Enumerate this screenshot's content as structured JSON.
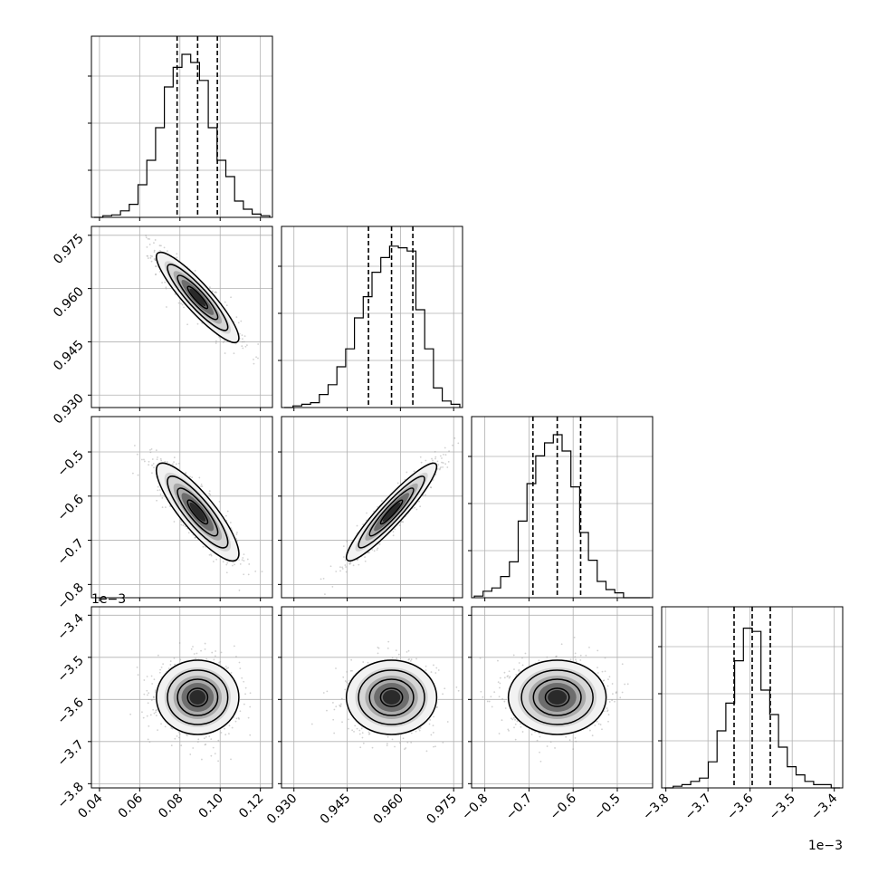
{
  "chart_data": {
    "type": "corner",
    "parameters": [
      {
        "lim": [
          0.036,
          0.126
        ],
        "ticks": [
          "0.04",
          "0.06",
          "0.08",
          "0.10",
          "0.12"
        ],
        "tick_values": [
          0.04,
          0.06,
          0.08,
          0.1,
          0.12
        ],
        "quantiles": [
          0.0786,
          0.0888,
          0.0986
        ],
        "mean": 0.0888,
        "sd": 0.01,
        "scale_label": ""
      },
      {
        "lim": [
          0.9265,
          0.9775
        ],
        "ticks": [
          "0.930",
          "0.945",
          "0.960",
          "0.975"
        ],
        "tick_values": [
          0.93,
          0.945,
          0.96,
          0.975
        ],
        "quantiles": [
          0.951,
          0.9575,
          0.9635
        ],
        "mean": 0.9575,
        "sd": 0.0062,
        "scale_label": ""
      },
      {
        "lim": [
          -0.83,
          -0.42
        ],
        "ticks": [
          "−0.8",
          "−0.7",
          "−0.6",
          "−0.5"
        ],
        "tick_values": [
          -0.8,
          -0.7,
          -0.6,
          -0.5
        ],
        "quantiles": [
          -0.691,
          -0.636,
          -0.583
        ],
        "mean": -0.636,
        "sd": 0.054,
        "scale_label": ""
      },
      {
        "lim": [
          -3.81,
          -3.38
        ],
        "ticks": [
          "−3.8",
          "−3.7",
          "−3.6",
          "−3.5",
          "−3.4"
        ],
        "tick_values": [
          -3.8,
          -3.7,
          -3.6,
          -3.5,
          -3.4
        ],
        "quantiles": [
          -3.638,
          -3.595,
          -3.552
        ],
        "mean": -3.595,
        "sd": 0.043,
        "scale_label": "1e−3"
      }
    ],
    "correlations": [
      [
        1.0,
        -0.9,
        -0.85,
        0.0
      ],
      [
        -0.9,
        1.0,
        0.93,
        0.0
      ],
      [
        -0.85,
        0.93,
        1.0,
        0.0
      ],
      [
        0.0,
        0.0,
        0.0,
        1.0
      ]
    ],
    "histogram_heights": [
      [
        0.0,
        0.01,
        0.015,
        0.04,
        0.08,
        0.2,
        0.35,
        0.55,
        0.8,
        0.92,
        1.0,
        0.95,
        0.84,
        0.55,
        0.35,
        0.25,
        0.1,
        0.05,
        0.02,
        0.01
      ],
      [
        0.0,
        0.01,
        0.02,
        0.03,
        0.08,
        0.14,
        0.25,
        0.36,
        0.55,
        0.68,
        0.83,
        0.92,
        0.99,
        0.98,
        0.96,
        0.6,
        0.36,
        0.12,
        0.04,
        0.02
      ],
      [
        0.01,
        0.04,
        0.06,
        0.13,
        0.22,
        0.47,
        0.7,
        0.87,
        0.95,
        1.0,
        0.9,
        0.68,
        0.4,
        0.23,
        0.1,
        0.05,
        0.03,
        0.0,
        0.0,
        0.0
      ],
      [
        0.0,
        0.01,
        0.02,
        0.04,
        0.06,
        0.16,
        0.35,
        0.52,
        0.78,
        0.98,
        0.96,
        0.6,
        0.45,
        0.25,
        0.13,
        0.08,
        0.04,
        0.02,
        0.02,
        0.0
      ]
    ],
    "grid": true,
    "show_quantiles": true
  }
}
